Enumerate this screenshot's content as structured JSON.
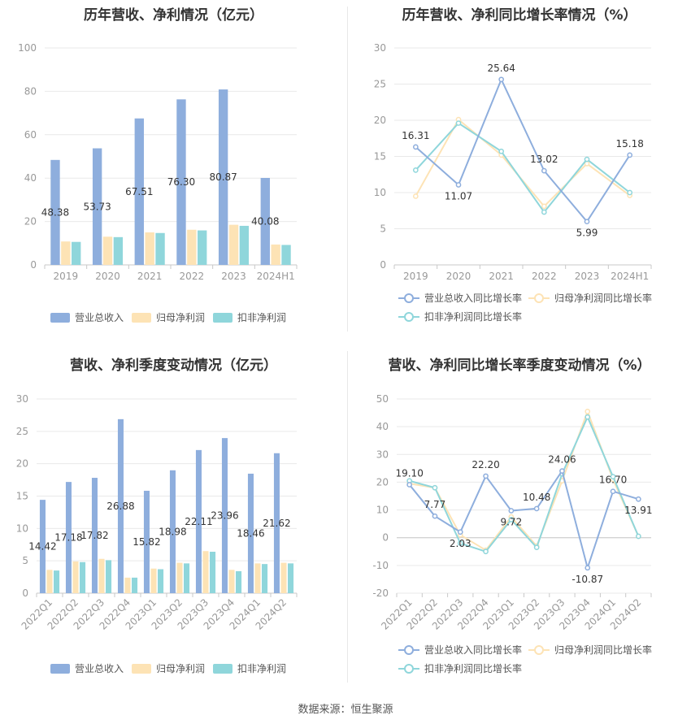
{
  "colors": {
    "revenue": "#8eaedd",
    "net_profit": "#fde3b5",
    "deducted_profit": "#8fd6db"
  },
  "legend": {
    "bar": [
      "营业总收入",
      "归母净利润",
      "扣非净利润"
    ],
    "line": [
      "营业总收入同比增长率",
      "归母净利润同比增长率",
      "扣非净利润同比增长率"
    ]
  },
  "charts": [
    {
      "title": "历年营收、净利情况（亿元）",
      "chart_data": {
        "type": "bar",
        "categories": [
          "2019",
          "2020",
          "2021",
          "2022",
          "2023",
          "2024H1"
        ],
        "ylim": [
          0,
          100
        ],
        "yticks": [
          0,
          20,
          40,
          60,
          80,
          100
        ],
        "series": [
          {
            "name": "营业总收入",
            "values": [
              48.38,
              53.73,
              67.51,
              76.3,
              80.87,
              40.08
            ],
            "labels": [
              "48.38",
              "53.73",
              "67.51",
              "76.30",
              "80.87",
              "40.08"
            ]
          },
          {
            "name": "归母净利润",
            "values": [
              10.8,
              13.0,
              15.0,
              16.2,
              18.5,
              9.4
            ]
          },
          {
            "name": "扣非净利润",
            "values": [
              10.6,
              12.8,
              14.7,
              15.9,
              18.0,
              9.2
            ]
          }
        ]
      }
    },
    {
      "title": "历年营收、净利同比增长率情况（%）",
      "chart_data": {
        "type": "line",
        "categories": [
          "2019",
          "2020",
          "2021",
          "2022",
          "2023",
          "2024H1"
        ],
        "ylim": [
          0,
          30
        ],
        "yticks": [
          0,
          5,
          10,
          15,
          20,
          25,
          30
        ],
        "series": [
          {
            "name": "营业总收入同比增长率",
            "values": [
              16.31,
              11.07,
              25.64,
              13.02,
              5.99,
              15.18
            ],
            "labels": [
              "16.31",
              "11.07",
              "25.64",
              "13.02",
              "5.99",
              "15.18"
            ]
          },
          {
            "name": "归母净利润同比增长率",
            "values": [
              9.5,
              20.1,
              15.2,
              8.1,
              14.0,
              9.6
            ]
          },
          {
            "name": "扣非净利润同比增长率",
            "values": [
              13.1,
              19.6,
              15.7,
              7.3,
              14.6,
              10.0
            ]
          }
        ]
      }
    },
    {
      "title": "营收、净利季度变动情况（亿元）",
      "chart_data": {
        "type": "bar",
        "categories": [
          "2022Q1",
          "2022Q2",
          "2022Q3",
          "2022Q4",
          "2023Q1",
          "2023Q2",
          "2023Q3",
          "2023Q4",
          "2024Q1",
          "2024Q2"
        ],
        "ylim": [
          0,
          30
        ],
        "yticks": [
          0,
          5,
          10,
          15,
          20,
          25,
          30
        ],
        "series": [
          {
            "name": "营业总收入",
            "values": [
              14.42,
              17.18,
              17.82,
              26.88,
              15.82,
              18.98,
              22.11,
              23.96,
              18.46,
              21.62
            ],
            "labels": [
              "14.42",
              "17.18",
              "17.82",
              "26.88",
              "15.82",
              "18.98",
              "22.11",
              "23.96",
              "18.46",
              "21.62"
            ]
          },
          {
            "name": "归母净利润",
            "values": [
              3.6,
              4.9,
              5.3,
              2.4,
              3.8,
              4.7,
              6.5,
              3.6,
              4.6,
              4.7
            ]
          },
          {
            "name": "扣非净利润",
            "values": [
              3.5,
              4.8,
              5.1,
              2.4,
              3.7,
              4.6,
              6.4,
              3.4,
              4.5,
              4.6
            ]
          }
        ]
      }
    },
    {
      "title": "营收、净利同比增长率季度变动情况（%）",
      "chart_data": {
        "type": "line",
        "categories": [
          "2022Q1",
          "2022Q2",
          "2022Q3",
          "2022Q4",
          "2023Q1",
          "2023Q2",
          "2023Q3",
          "2023Q4",
          "2024Q1",
          "2024Q2"
        ],
        "ylim": [
          -20,
          50
        ],
        "yticks": [
          -20,
          -10,
          0,
          10,
          20,
          30,
          40,
          50
        ],
        "series": [
          {
            "name": "营业总收入同比增长率",
            "values": [
              19.1,
              7.77,
              2.03,
              22.2,
              9.72,
              10.48,
              24.06,
              -10.87,
              16.7,
              13.91
            ],
            "labels": [
              "19.10",
              "7.77",
              "2.03",
              "22.20",
              "9.72",
              "10.48",
              "24.06",
              "-10.87",
              "16.70",
              "13.91"
            ]
          },
          {
            "name": "归母净利润同比增长率",
            "values": [
              19.5,
              18.0,
              1.0,
              -4.5,
              7.5,
              -3.0,
              20.5,
              45.5,
              21.0,
              0.5
            ]
          },
          {
            "name": "扣非净利润同比增长率",
            "values": [
              20.5,
              18.0,
              -2.0,
              -5.0,
              6.5,
              -3.5,
              23.0,
              43.5,
              22.0,
              0.5
            ]
          }
        ]
      }
    }
  ],
  "source_text": "数据来源：恒生聚源"
}
